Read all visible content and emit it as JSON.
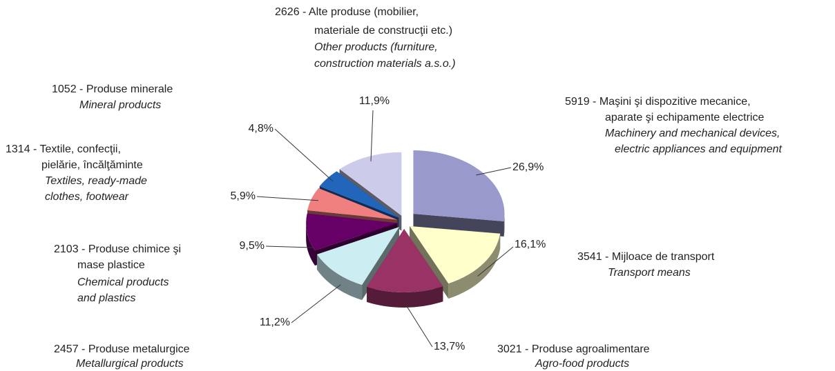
{
  "chart_data": {
    "type": "pie",
    "values": [
      26.9,
      16.1,
      13.7,
      11.2,
      9.5,
      5.9,
      4.8,
      11.9
    ],
    "value_labels": [
      "26,9%",
      "16,1%",
      "13,7%",
      "11,2%",
      "9,5%",
      "5,9%",
      "4,8%",
      "11,9%"
    ],
    "colors": [
      "#9999cc",
      "#ffffcc",
      "#993366",
      "#cceef2",
      "#660066",
      "#f08080",
      "#2266bb",
      "#ccccea"
    ],
    "categories": [
      {
        "ro": [
          "5919 - Maşini şi dispozitive mecanice,",
          "aparate şi echipamente electrice"
        ],
        "en": [
          "Machinery and mechanical devices,",
          "electric appliances and equipment"
        ]
      },
      {
        "ro": [
          "3541 - Mijloace de transport"
        ],
        "en": [
          "Transport means"
        ]
      },
      {
        "ro": [
          "3021 - Produse agroalimentare"
        ],
        "en": [
          "Agro-food products"
        ]
      },
      {
        "ro": [
          "2457 - Produse metalurgice"
        ],
        "en": [
          "Metallurgical products"
        ]
      },
      {
        "ro": [
          "2103 - Produse chimice şi",
          "mase plastice"
        ],
        "en": [
          "Chemical products",
          "and plastics"
        ]
      },
      {
        "ro": [
          "1314 - Textile, confecţii,",
          "pielărie, încălţăminte"
        ],
        "en": [
          "Textiles, ready-made",
          "clothes, footwear"
        ]
      },
      {
        "ro": [
          "1052 - Produse minerale"
        ],
        "en": [
          "Mineral products"
        ]
      },
      {
        "ro": [
          "2626 - Alte produse (mobilier,",
          "materiale de construcţii etc.)"
        ],
        "en": [
          "Other products (furniture,",
          "construction materials a.s.o.)"
        ]
      }
    ]
  }
}
